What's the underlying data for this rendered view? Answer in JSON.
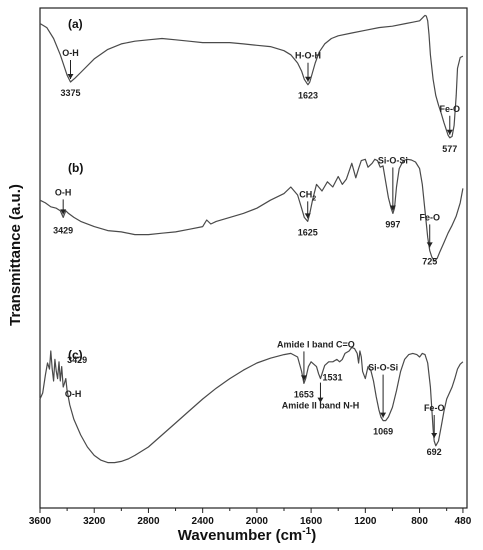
{
  "chart_data": {
    "type": "line",
    "xlabel": "Wavenumber (cm",
    "xlabel_sup": "-1",
    "xlabel_tail": ")",
    "ylabel": "Transmittance (a.u.)",
    "xlim": [
      3600,
      450
    ],
    "x_reversed": true,
    "xticks": [
      "3600",
      "3200",
      "2800",
      "2400",
      "2000",
      "1600",
      "1200",
      "800",
      "480",
      "3400",
      "3000",
      "2600",
      "2200",
      "1800",
      "1400",
      "1000",
      "600"
    ],
    "xtick_values": [
      3600,
      3200,
      2800,
      2400,
      2000,
      1600,
      1200,
      800,
      480,
      3400,
      3000,
      2600,
      2200,
      1800,
      1400,
      1000,
      600
    ],
    "ylim": [
      0,
      1
    ],
    "colors": {
      "curve": "#4a4a4a",
      "axis": "#222222",
      "text": "#111111"
    },
    "series": [
      {
        "panel_label": "(a)",
        "x": [
          3600,
          3550,
          3500,
          3450,
          3400,
          3375,
          3340,
          3300,
          3200,
          3100,
          3000,
          2900,
          2800,
          2700,
          2600,
          2500,
          2400,
          2300,
          2200,
          2100,
          2000,
          1900,
          1800,
          1750,
          1700,
          1670,
          1650,
          1630,
          1623,
          1610,
          1590,
          1570,
          1540,
          1500,
          1450,
          1400,
          1300,
          1200,
          1100,
          1000,
          900,
          850,
          800,
          780,
          770,
          760,
          750,
          740,
          730,
          720,
          700,
          680,
          660,
          640,
          620,
          600,
          590,
          577,
          560,
          545,
          530,
          520,
          500,
          480
        ],
        "y": [
          0.93,
          0.9,
          0.82,
          0.7,
          0.55,
          0.5,
          0.53,
          0.57,
          0.67,
          0.74,
          0.78,
          0.8,
          0.81,
          0.82,
          0.81,
          0.8,
          0.79,
          0.79,
          0.79,
          0.78,
          0.77,
          0.76,
          0.73,
          0.7,
          0.64,
          0.58,
          0.52,
          0.49,
          0.48,
          0.5,
          0.57,
          0.64,
          0.72,
          0.78,
          0.82,
          0.84,
          0.86,
          0.88,
          0.9,
          0.91,
          0.93,
          0.94,
          0.95,
          0.97,
          0.98,
          0.99,
          0.985,
          0.95,
          0.85,
          0.7,
          0.52,
          0.4,
          0.33,
          0.27,
          0.2,
          0.14,
          0.11,
          0.09,
          0.1,
          0.18,
          0.4,
          0.6,
          0.68,
          0.69
        ],
        "annotations": [
          {
            "text": "O-H",
            "x": 3375,
            "value": "3375"
          },
          {
            "text": "H-O-H",
            "x": 1623,
            "value": "1623"
          },
          {
            "text": "Fe-O",
            "x": 577,
            "value": "577"
          }
        ]
      },
      {
        "panel_label": "(b)",
        "x": [
          3600,
          3560,
          3520,
          3480,
          3450,
          3429,
          3410,
          3390,
          3350,
          3300,
          3200,
          3100,
          3000,
          2900,
          2800,
          2700,
          2600,
          2500,
          2400,
          2370,
          2340,
          2300,
          2200,
          2100,
          2000,
          1900,
          1800,
          1750,
          1700,
          1670,
          1650,
          1625,
          1610,
          1590,
          1560,
          1520,
          1480,
          1440,
          1400,
          1370,
          1340,
          1320,
          1300,
          1270,
          1250,
          1230,
          1200,
          1180,
          1150,
          1130,
          1110,
          1090,
          1070,
          1050,
          1030,
          1010,
          997,
          985,
          970,
          950,
          920,
          890,
          860,
          830,
          800,
          780,
          760,
          740,
          725,
          710,
          690,
          670,
          650,
          620,
          590,
          560,
          530,
          500,
          480
        ],
        "y": [
          0.68,
          0.66,
          0.63,
          0.62,
          0.6,
          0.55,
          0.6,
          0.58,
          0.55,
          0.52,
          0.48,
          0.45,
          0.44,
          0.42,
          0.42,
          0.43,
          0.44,
          0.46,
          0.48,
          0.53,
          0.5,
          0.52,
          0.55,
          0.58,
          0.62,
          0.68,
          0.73,
          0.78,
          0.72,
          0.62,
          0.55,
          0.52,
          0.58,
          0.68,
          0.8,
          0.75,
          0.82,
          0.78,
          0.86,
          0.8,
          0.84,
          0.9,
          0.96,
          0.85,
          0.92,
          0.98,
          0.99,
          0.93,
          0.96,
          0.99,
          0.98,
          0.93,
          0.94,
          0.82,
          0.7,
          0.62,
          0.58,
          0.62,
          0.78,
          0.92,
          0.98,
          0.99,
          0.985,
          0.97,
          0.92,
          0.8,
          0.6,
          0.4,
          0.3,
          0.25,
          0.22,
          0.24,
          0.29,
          0.36,
          0.43,
          0.49,
          0.56,
          0.66,
          0.77
        ],
        "annotations": [
          {
            "text": "O-H",
            "x": 3429,
            "value": "3429"
          },
          {
            "text": "CH",
            "sub": "2",
            "x": 1625,
            "value": "1625"
          },
          {
            "text": "Si-O-Si",
            "x": 997,
            "value": "997"
          },
          {
            "text": "Fe-O",
            "x": 725,
            "value": "725"
          }
        ]
      },
      {
        "panel_label": "(c)",
        "x": [
          3600,
          3580,
          3560,
          3545,
          3530,
          3520,
          3510,
          3500,
          3490,
          3480,
          3470,
          3460,
          3450,
          3440,
          3429,
          3420,
          3410,
          3400,
          3380,
          3350,
          3300,
          3250,
          3200,
          3150,
          3100,
          3050,
          3000,
          2950,
          2900,
          2800,
          2700,
          2600,
          2500,
          2400,
          2300,
          2200,
          2100,
          2000,
          1900,
          1800,
          1750,
          1700,
          1670,
          1653,
          1640,
          1620,
          1600,
          1580,
          1560,
          1545,
          1531,
          1520,
          1500,
          1470,
          1440,
          1410,
          1390,
          1370,
          1350,
          1320,
          1300,
          1280,
          1260,
          1250,
          1240,
          1230,
          1220,
          1200,
          1180,
          1160,
          1140,
          1120,
          1100,
          1085,
          1069,
          1050,
          1030,
          1000,
          970,
          940,
          910,
          880,
          850,
          820,
          800,
          780,
          760,
          740,
          720,
          700,
          692,
          680,
          660,
          640,
          620,
          600,
          580,
          560,
          540,
          520,
          500,
          480
        ],
        "y": [
          0.55,
          0.6,
          0.75,
          0.85,
          0.8,
          0.95,
          0.8,
          0.7,
          0.88,
          0.78,
          0.72,
          0.86,
          0.7,
          0.82,
          0.65,
          0.68,
          0.72,
          0.62,
          0.5,
          0.38,
          0.25,
          0.15,
          0.08,
          0.04,
          0.02,
          0.02,
          0.03,
          0.05,
          0.08,
          0.15,
          0.25,
          0.35,
          0.45,
          0.55,
          0.64,
          0.72,
          0.79,
          0.85,
          0.89,
          0.92,
          0.93,
          0.9,
          0.78,
          0.68,
          0.72,
          0.82,
          0.86,
          0.84,
          0.82,
          0.76,
          0.72,
          0.76,
          0.83,
          0.86,
          0.86,
          0.88,
          0.86,
          0.88,
          0.93,
          0.95,
          0.98,
          0.97,
          0.93,
          0.85,
          0.95,
          0.9,
          0.78,
          0.72,
          0.82,
          0.79,
          0.7,
          0.57,
          0.46,
          0.4,
          0.37,
          0.37,
          0.4,
          0.48,
          0.62,
          0.78,
          0.88,
          0.92,
          0.93,
          0.92,
          0.9,
          0.93,
          0.92,
          0.85,
          0.65,
          0.3,
          0.2,
          0.16,
          0.2,
          0.32,
          0.45,
          0.55,
          0.6,
          0.65,
          0.72,
          0.8,
          0.84,
          0.86
        ],
        "annotations": [
          {
            "text": "O-H",
            "x": 3429,
            "value": "3429"
          },
          {
            "text": "Amide I band C=O",
            "x": 1653,
            "value": "1653"
          },
          {
            "text": "Amide II band N-H",
            "x": 1531,
            "value": "1531"
          },
          {
            "text": "Si-O-Si",
            "x": 1069,
            "value": "1069"
          },
          {
            "text": "Fe-O",
            "x": 692,
            "value": "692"
          }
        ]
      }
    ]
  }
}
